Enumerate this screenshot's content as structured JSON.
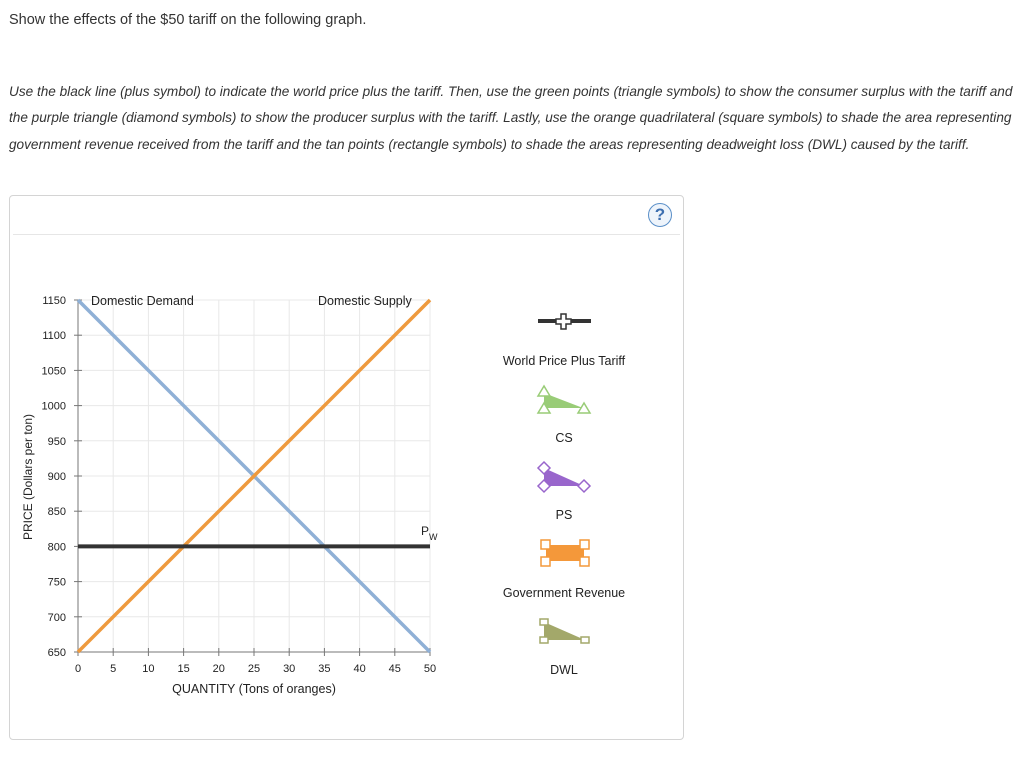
{
  "intro": "Show the effects of the $50 tariff on the following graph.",
  "instructions": "Use the black line (plus symbol) to indicate the world price plus the tariff. Then, use the green points (triangle symbols) to show the consumer surplus with the tariff and the purple triangle (diamond symbols) to show the producer surplus with the tariff. Lastly, use the orange quadrilateral (square symbols) to shade the area representing government revenue received from the tariff and the tan points (rectangle symbols) to shade the areas representing deadweight loss (DWL) caused by the tariff.",
  "help_label": "?",
  "colors": {
    "demand": "#8fb0d6",
    "supply": "#ee9a3e",
    "world_price": "#333333",
    "cs": "#99cc77",
    "ps": "#9966cc",
    "gov": "#f4983a",
    "dwl": "#a3a86a"
  },
  "chart_data": {
    "type": "line",
    "xlabel": "QUANTITY (Tons of oranges)",
    "ylabel": "PRICE (Dollars per ton)",
    "xlim": [
      0,
      50
    ],
    "ylim": [
      650,
      1150
    ],
    "x_ticks": [
      0,
      5,
      10,
      15,
      20,
      25,
      30,
      35,
      40,
      45,
      50
    ],
    "y_ticks": [
      650,
      700,
      750,
      800,
      850,
      900,
      950,
      1000,
      1050,
      1100,
      1150
    ],
    "grid": true,
    "series": [
      {
        "name": "Domestic Demand",
        "x": [
          0,
          50
        ],
        "y": [
          1150,
          650
        ]
      },
      {
        "name": "Domestic Supply",
        "x": [
          0,
          50
        ],
        "y": [
          650,
          1150
        ]
      }
    ],
    "world_price": {
      "label": "P",
      "subscript": "W",
      "value": 800
    }
  },
  "toolbox": [
    {
      "id": "world-price-plus-tariff",
      "label": "World Price Plus Tariff",
      "symbol": "plus"
    },
    {
      "id": "cs",
      "label": "CS",
      "symbol": "triangle"
    },
    {
      "id": "ps",
      "label": "PS",
      "symbol": "diamond"
    },
    {
      "id": "government-revenue",
      "label": "Government Revenue",
      "symbol": "square"
    },
    {
      "id": "dwl",
      "label": "DWL",
      "symbol": "rectangle"
    }
  ]
}
